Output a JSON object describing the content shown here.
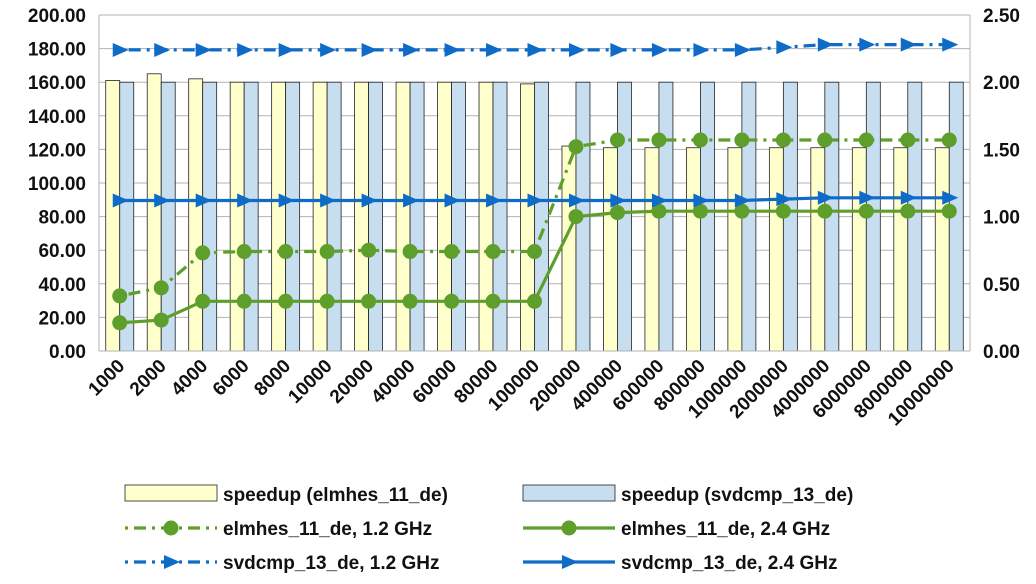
{
  "chart_data": {
    "type": "bar",
    "categories": [
      "1000",
      "2000",
      "4000",
      "6000",
      "8000",
      "10000",
      "20000",
      "40000",
      "60000",
      "80000",
      "100000",
      "200000",
      "400000",
      "600000",
      "800000",
      "1000000",
      "2000000",
      "4000000",
      "6000000",
      "8000000",
      "10000000"
    ],
    "y_left": {
      "min": 0,
      "max": 200,
      "step": 20,
      "tick_labels": [
        "0.00",
        "20.00",
        "40.00",
        "60.00",
        "80.00",
        "100.00",
        "120.00",
        "140.00",
        "160.00",
        "180.00",
        "200.00"
      ]
    },
    "y_right": {
      "min": 0,
      "max": 2.5,
      "step": 0.5,
      "tick_labels": [
        "0.00",
        "0.50",
        "1.00",
        "1.50",
        "2.00",
        "2.50"
      ]
    },
    "grid": "horizontal",
    "legend_position": "bottom",
    "series": [
      {
        "name": "speedup (elmhes_11_de)",
        "kind": "bar",
        "axis": "left",
        "color": "#FFFFCC",
        "values": [
          161,
          165,
          162,
          160,
          160,
          160,
          160,
          160,
          160,
          160,
          159,
          122,
          121,
          121,
          121,
          121,
          121,
          121,
          121,
          121,
          121
        ]
      },
      {
        "name": "speedup (svdcmp_13_de)",
        "kind": "bar",
        "axis": "left",
        "color": "#C6DEF0",
        "values": [
          160,
          160,
          160,
          160,
          160,
          160,
          160,
          160,
          160,
          160,
          160,
          160,
          160,
          160,
          160,
          160,
          160,
          160,
          160,
          160,
          160
        ]
      },
      {
        "name": "elmhes_11_de, 1.2 GHz",
        "kind": "line",
        "axis": "right",
        "style": "dashdot",
        "marker": "circle",
        "color": "#5E9E2B",
        "values": [
          0.41,
          0.47,
          0.73,
          0.74,
          0.74,
          0.74,
          0.75,
          0.74,
          0.74,
          0.74,
          0.74,
          1.52,
          1.57,
          1.57,
          1.57,
          1.57,
          1.57,
          1.57,
          1.57,
          1.57,
          1.57
        ]
      },
      {
        "name": "elmhes_11_de, 2.4 GHz",
        "kind": "line",
        "axis": "right",
        "style": "solid",
        "marker": "circle",
        "color": "#5E9E2B",
        "values": [
          0.21,
          0.23,
          0.37,
          0.37,
          0.37,
          0.37,
          0.37,
          0.37,
          0.37,
          0.37,
          0.37,
          1.0,
          1.03,
          1.04,
          1.04,
          1.04,
          1.04,
          1.04,
          1.04,
          1.04,
          1.04
        ]
      },
      {
        "name": "svdcmp_13_de, 1.2 GHz",
        "kind": "line",
        "axis": "right",
        "style": "dashdot",
        "marker": "triangle",
        "color": "#0F6BC8",
        "values": [
          2.24,
          2.24,
          2.24,
          2.24,
          2.24,
          2.24,
          2.24,
          2.24,
          2.24,
          2.24,
          2.24,
          2.24,
          2.24,
          2.24,
          2.24,
          2.24,
          2.26,
          2.28,
          2.28,
          2.28,
          2.28
        ]
      },
      {
        "name": "svdcmp_13_de, 2.4 GHz",
        "kind": "line",
        "axis": "right",
        "style": "solid",
        "marker": "triangle",
        "color": "#0F6BC8",
        "values": [
          1.12,
          1.12,
          1.12,
          1.12,
          1.12,
          1.12,
          1.12,
          1.12,
          1.12,
          1.12,
          1.12,
          1.12,
          1.12,
          1.12,
          1.12,
          1.12,
          1.13,
          1.14,
          1.14,
          1.14,
          1.14
        ]
      }
    ]
  }
}
